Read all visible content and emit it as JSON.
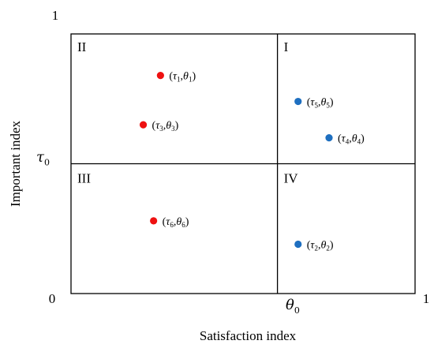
{
  "chart_data": {
    "type": "scatter",
    "xlabel": "Satisfaction index",
    "ylabel": "Important index",
    "xlim": [
      0,
      1
    ],
    "ylim": [
      0,
      1
    ],
    "tick_labels": {
      "x_origin": "0",
      "x_max": "1",
      "y_max": "1",
      "x_threshold_symbol": "θ",
      "x_threshold_subscript": "0",
      "y_threshold_symbol": "τ",
      "y_threshold_subscript": "0"
    },
    "thresholds": {
      "x": 0.6,
      "y": 0.5
    },
    "quadrants": [
      {
        "label": "I",
        "position": "top-right"
      },
      {
        "label": "II",
        "position": "top-left"
      },
      {
        "label": "III",
        "position": "bottom-left"
      },
      {
        "label": "IV",
        "position": "bottom-right"
      }
    ],
    "colors": {
      "red": "#ee1111",
      "blue": "#1e6fc0",
      "frame": "#000000"
    },
    "points": [
      {
        "x": 0.26,
        "y": 0.84,
        "color": "red",
        "label": {
          "tau": "τ",
          "tau_sub": "1",
          "theta": "θ",
          "theta_sub": "1"
        }
      },
      {
        "x": 0.21,
        "y": 0.65,
        "color": "red",
        "label": {
          "tau": "τ",
          "tau_sub": "3",
          "theta": "θ",
          "theta_sub": "3"
        }
      },
      {
        "x": 0.24,
        "y": 0.28,
        "color": "red",
        "label": {
          "tau": "τ",
          "tau_sub": "6",
          "theta": "θ",
          "theta_sub": "6"
        }
      },
      {
        "x": 0.66,
        "y": 0.74,
        "color": "blue",
        "label": {
          "tau": "τ",
          "tau_sub": "5",
          "theta": "θ",
          "theta_sub": "5"
        }
      },
      {
        "x": 0.75,
        "y": 0.6,
        "color": "blue",
        "label": {
          "tau": "τ",
          "tau_sub": "4",
          "theta": "θ",
          "theta_sub": "4"
        }
      },
      {
        "x": 0.66,
        "y": 0.19,
        "color": "blue",
        "label": {
          "tau": "τ",
          "tau_sub": "2",
          "theta": "θ",
          "theta_sub": "2"
        }
      }
    ]
  }
}
